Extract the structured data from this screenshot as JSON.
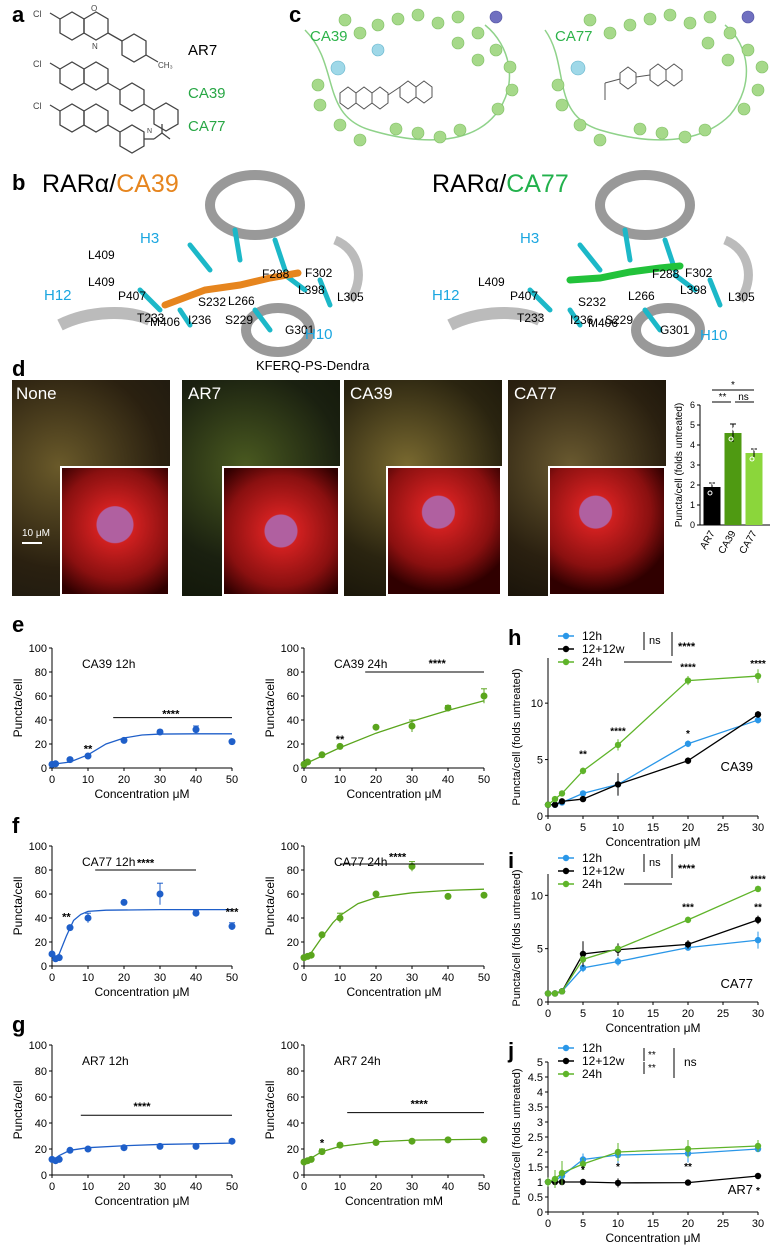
{
  "panels": {
    "a": {
      "letter": "a",
      "compounds": [
        {
          "name": "AR7",
          "color": "#000000",
          "substituent": "CH3"
        },
        {
          "name": "CA39",
          "color": "#28a745"
        },
        {
          "name": "CA77",
          "color": "#28a745"
        }
      ]
    },
    "b": {
      "letter": "b",
      "title_left_prefix": "RARα/",
      "title_left_ligand": "CA39",
      "title_left_color": "#e6851e",
      "title_right_prefix": "RARα/",
      "title_right_ligand": "CA77",
      "title_right_color": "#22b14c",
      "residues": [
        "H3",
        "F288",
        "F302",
        "S232",
        "T233",
        "I236",
        "S229",
        "G301",
        "L409",
        "P407",
        "L266",
        "L398",
        "L305",
        "H12",
        "M406",
        "H10"
      ]
    },
    "c": {
      "letter": "c",
      "left_label": "CA39",
      "right_label": "CA77",
      "label_color": "#2db34a"
    },
    "d": {
      "letter": "d",
      "title": "KFERQ-PS-Dendra",
      "images": [
        "None",
        "AR7",
        "CA39",
        "CA77"
      ],
      "scale_bar": "10 μM",
      "bar": {
        "ylabel": "Puncta/cell (folds untreated)",
        "categories": [
          "AR7",
          "CA39",
          "CA77"
        ],
        "values": [
          1.9,
          4.6,
          3.6
        ],
        "errors": [
          0.2,
          0.45,
          0.2
        ],
        "colors": [
          "#000000",
          "#4f9a12",
          "#8bd63b"
        ],
        "ylim": [
          0,
          6
        ],
        "yticks": [
          "0",
          "1",
          "2",
          "3",
          "4",
          "5",
          "6"
        ],
        "sig": [
          {
            "label": "*"
          },
          {
            "label": "**"
          },
          {
            "label": "ns"
          }
        ]
      }
    },
    "e": {
      "letter": "e"
    },
    "f": {
      "letter": "f"
    },
    "g": {
      "letter": "g"
    },
    "h": {
      "letter": "h"
    },
    "i": {
      "letter": "i"
    },
    "j": {
      "letter": "j"
    }
  },
  "chart_data": [
    {
      "id": "e1",
      "type": "scatter",
      "title": "CA39 12h",
      "xlabel": "Concentration μM",
      "ylabel": "Puncta/cell",
      "xlim": [
        0,
        50
      ],
      "ylim": [
        0,
        100
      ],
      "xticks": [
        0,
        10,
        20,
        30,
        40,
        50
      ],
      "yticks": [
        0,
        20,
        40,
        60,
        80,
        100
      ],
      "color": "#1f5fc9",
      "x": [
        0,
        1,
        5,
        10,
        20,
        30,
        40,
        50
      ],
      "y": [
        3,
        3.5,
        7,
        10,
        23,
        30,
        32,
        22
      ],
      "err": [
        0.5,
        0.5,
        1,
        1,
        1,
        1.5,
        3,
        1
      ],
      "fit": [
        [
          0,
          3
        ],
        [
          5,
          5
        ],
        [
          10,
          11
        ],
        [
          15,
          20
        ],
        [
          20,
          25
        ],
        [
          25,
          27.5
        ],
        [
          30,
          28.3
        ],
        [
          40,
          28.5
        ],
        [
          50,
          28.5
        ]
      ],
      "annotations": [
        {
          "text": "**"
        },
        {
          "text": "****"
        }
      ]
    },
    {
      "id": "e2",
      "type": "scatter",
      "title": "CA39 24h",
      "xlabel": "Concentration μM",
      "ylabel": "Puncta/cell",
      "xlim": [
        0,
        50
      ],
      "ylim": [
        0,
        100
      ],
      "xticks": [
        0,
        10,
        20,
        30,
        40,
        50
      ],
      "yticks": [
        0,
        20,
        40,
        60,
        80,
        100
      ],
      "color": "#5aa51d",
      "x": [
        0,
        1,
        5,
        10,
        20,
        30,
        40,
        50
      ],
      "y": [
        3,
        5,
        11,
        18,
        34,
        35,
        50,
        60
      ],
      "err": [
        0.5,
        0.5,
        1,
        1,
        1,
        5,
        2,
        6
      ],
      "fit": [
        [
          0,
          3
        ],
        [
          5,
          10
        ],
        [
          10,
          17
        ],
        [
          20,
          29
        ],
        [
          30,
          39
        ],
        [
          40,
          48
        ],
        [
          50,
          56
        ]
      ],
      "annotations": [
        {
          "text": "**"
        },
        {
          "text": "****"
        }
      ]
    },
    {
      "id": "f1",
      "type": "scatter",
      "title": "CA77 12h",
      "xlabel": "Concentration μM",
      "ylabel": "Puncta/cell",
      "xlim": [
        0,
        50
      ],
      "ylim": [
        0,
        100
      ],
      "xticks": [
        0,
        10,
        20,
        30,
        40,
        50
      ],
      "yticks": [
        0,
        20,
        40,
        60,
        80,
        100
      ],
      "color": "#1f5fc9",
      "x": [
        0,
        1,
        2,
        5,
        10,
        20,
        30,
        40,
        50
      ],
      "y": [
        10,
        6,
        7,
        32,
        40,
        53,
        60,
        44,
        33
      ],
      "err": [
        1,
        0.5,
        0.5,
        1,
        4,
        1,
        9,
        2,
        3
      ],
      "fit": [
        [
          0,
          5
        ],
        [
          2,
          10
        ],
        [
          4,
          25
        ],
        [
          6,
          38
        ],
        [
          8,
          43
        ],
        [
          10,
          45.5
        ],
        [
          15,
          46.5
        ],
        [
          30,
          47
        ],
        [
          50,
          47
        ]
      ],
      "annotations": [
        {
          "text": "**"
        },
        {
          "text": "****"
        },
        {
          "text": "***"
        }
      ]
    },
    {
      "id": "f2",
      "type": "scatter",
      "title": "CA77 24h",
      "xlabel": "Concentration μM",
      "ylabel": "Puncta/cell",
      "xlim": [
        0,
        50
      ],
      "ylim": [
        0,
        100
      ],
      "xticks": [
        0,
        10,
        20,
        30,
        40,
        50
      ],
      "yticks": [
        0,
        20,
        40,
        60,
        80,
        100
      ],
      "color": "#5aa51d",
      "x": [
        0,
        1,
        2,
        5,
        10,
        20,
        30,
        40,
        50
      ],
      "y": [
        7,
        8,
        9,
        26,
        40,
        60,
        83,
        58,
        59
      ],
      "err": [
        1,
        0.5,
        0.5,
        1,
        4,
        1,
        4,
        1,
        1
      ],
      "fit": [
        [
          0,
          5
        ],
        [
          2,
          11
        ],
        [
          5,
          24
        ],
        [
          8,
          36
        ],
        [
          10,
          42
        ],
        [
          15,
          52
        ],
        [
          20,
          57
        ],
        [
          30,
          61
        ],
        [
          40,
          63
        ],
        [
          50,
          64
        ]
      ],
      "annotations": [
        {
          "text": "****"
        }
      ]
    },
    {
      "id": "g1",
      "type": "scatter",
      "title": "AR7 12h",
      "xlabel": "Concentration μM",
      "ylabel": "Puncta/cell",
      "xlim": [
        0,
        50
      ],
      "ylim": [
        0,
        100
      ],
      "xticks": [
        0,
        10,
        20,
        30,
        40,
        50
      ],
      "yticks": [
        0,
        20,
        40,
        60,
        80,
        100
      ],
      "color": "#1f5fc9",
      "x": [
        0,
        1,
        2,
        5,
        10,
        20,
        30,
        40,
        50
      ],
      "y": [
        12,
        11,
        12,
        19,
        20,
        21,
        22,
        22,
        26
      ],
      "err": [
        1,
        0.5,
        0.5,
        1,
        1,
        1,
        1,
        1,
        1
      ],
      "fit": [
        [
          0,
          11
        ],
        [
          2,
          15
        ],
        [
          5,
          19
        ],
        [
          10,
          21
        ],
        [
          20,
          22.5
        ],
        [
          30,
          23.5
        ],
        [
          50,
          24.5
        ]
      ],
      "annotations": [
        {
          "text": "****"
        }
      ]
    },
    {
      "id": "g2",
      "type": "scatter",
      "title": "AR7 24h",
      "xlabel": "Concentration mM",
      "ylabel": "Puncta/cell",
      "xlim": [
        0,
        50
      ],
      "ylim": [
        0,
        100
      ],
      "xticks": [
        0,
        10,
        20,
        30,
        40,
        50
      ],
      "yticks": [
        0,
        20,
        40,
        60,
        80,
        100
      ],
      "color": "#5aa51d",
      "x": [
        0,
        1,
        2,
        5,
        10,
        20,
        30,
        40,
        50
      ],
      "y": [
        10,
        11,
        12,
        18,
        23,
        25,
        26,
        27,
        27
      ],
      "err": [
        1,
        0.5,
        1,
        2,
        1,
        1,
        1,
        1,
        1
      ],
      "fit": [
        [
          0,
          10
        ],
        [
          2,
          13
        ],
        [
          5,
          18
        ],
        [
          10,
          22
        ],
        [
          20,
          25.5
        ],
        [
          30,
          26.8
        ],
        [
          50,
          27.5
        ]
      ],
      "annotations": [
        {
          "text": "*"
        },
        {
          "text": "****"
        }
      ]
    },
    {
      "id": "h",
      "type": "line",
      "ylabel": "Puncta/cell (folds untreated)",
      "xlabel": "Concentration μM",
      "xlim": [
        0,
        30
      ],
      "ylim": [
        0,
        14
      ],
      "xticks": [
        0,
        5,
        10,
        15,
        20,
        25,
        30
      ],
      "yticks": [
        0,
        5,
        10
      ],
      "inner_label": "CA39",
      "series": [
        {
          "name": "12h",
          "color": "#2a97e8",
          "x": [
            0,
            1,
            2,
            5,
            10,
            20,
            30
          ],
          "y": [
            1,
            1,
            1.2,
            2,
            2.8,
            6.4,
            8.5
          ],
          "err": [
            0.2,
            0.2,
            0.2,
            0.2,
            1,
            0.3,
            0.3
          ]
        },
        {
          "name": "12+12w",
          "color": "#000000",
          "x": [
            0,
            1,
            2,
            5,
            10,
            20,
            30
          ],
          "y": [
            1,
            1,
            1.3,
            1.5,
            2.8,
            4.9,
            9
          ],
          "err": [
            0.2,
            0.2,
            0.2,
            0.2,
            1,
            0.3,
            0.3
          ]
        },
        {
          "name": "24h",
          "color": "#5fb42a",
          "x": [
            0,
            1,
            2,
            5,
            10,
            20,
            30
          ],
          "y": [
            1,
            1.5,
            2,
            4,
            6.3,
            12,
            12.4
          ],
          "err": [
            0.2,
            0.2,
            0.2,
            0.3,
            0.5,
            0.4,
            0.6
          ]
        }
      ],
      "legend_sig": [
        "ns",
        "****"
      ],
      "annotations": [
        {
          "text": "**"
        },
        {
          "text": "****"
        },
        {
          "text": "*"
        },
        {
          "text": "****"
        },
        {
          "text": "****"
        }
      ]
    },
    {
      "id": "i",
      "type": "line",
      "ylabel": "Puncta/cell (folds untreated)",
      "xlabel": "Concentration μM",
      "xlim": [
        0,
        30
      ],
      "ylim": [
        0,
        12
      ],
      "xticks": [
        0,
        5,
        10,
        15,
        20,
        25,
        30
      ],
      "yticks": [
        0,
        5,
        10
      ],
      "inner_label": "CA77",
      "series": [
        {
          "name": "12h",
          "color": "#2a97e8",
          "x": [
            0,
            1,
            2,
            5,
            10,
            20,
            30
          ],
          "y": [
            0.8,
            0.8,
            1,
            3.2,
            3.8,
            5.1,
            5.8
          ],
          "err": [
            0.2,
            0.2,
            0.2,
            0.4,
            0.4,
            0.3,
            0.8
          ]
        },
        {
          "name": "12+12w",
          "color": "#000000",
          "x": [
            0,
            1,
            2,
            5,
            10,
            20,
            30
          ],
          "y": [
            0.8,
            0.8,
            1,
            4.5,
            4.9,
            5.4,
            7.7
          ],
          "err": [
            0.2,
            0.2,
            0.2,
            1.2,
            0.6,
            0.4,
            0.4
          ]
        },
        {
          "name": "24h",
          "color": "#5fb42a",
          "x": [
            0,
            1,
            2,
            5,
            10,
            20,
            30
          ],
          "y": [
            0.8,
            0.8,
            1,
            4,
            5,
            7.7,
            10.6
          ],
          "err": [
            0.2,
            0.2,
            0.2,
            0.3,
            0.3,
            0.3,
            0.3
          ]
        }
      ],
      "legend_sig": [
        "ns",
        "****"
      ],
      "annotations": [
        {
          "text": "***"
        },
        {
          "text": "****"
        },
        {
          "text": "**"
        }
      ]
    },
    {
      "id": "j",
      "type": "line",
      "ylabel": "Puncta/cell (folds untreated)",
      "xlabel": "Concentration μM",
      "xlim": [
        0,
        30
      ],
      "ylim": [
        0,
        5
      ],
      "xticks": [
        0,
        5,
        10,
        15,
        20,
        25,
        30
      ],
      "yticks": [
        0,
        0.5,
        1,
        1.5,
        2,
        2.5,
        3,
        3.5,
        4,
        4.5,
        5
      ],
      "inner_label": "AR7",
      "series": [
        {
          "name": "12h",
          "color": "#2a97e8",
          "x": [
            0,
            1,
            2,
            5,
            10,
            20,
            30
          ],
          "y": [
            1,
            1.05,
            1.2,
            1.75,
            1.9,
            1.95,
            2.1
          ],
          "err": [
            0.15,
            0.2,
            0.3,
            0.2,
            0.3,
            0.3,
            0.1
          ]
        },
        {
          "name": "12+12w",
          "color": "#000000",
          "x": [
            0,
            1,
            2,
            5,
            10,
            20,
            30
          ],
          "y": [
            1,
            1,
            1,
            1,
            0.97,
            0.98,
            1.2
          ],
          "err": [
            0.1,
            0.1,
            0.1,
            0.1,
            0.15,
            0.1,
            0.05
          ]
        },
        {
          "name": "24h",
          "color": "#5fb42a",
          "x": [
            0,
            1,
            2,
            5,
            10,
            20,
            30
          ],
          "y": [
            1,
            1.1,
            1.3,
            1.6,
            2,
            2.1,
            2.2
          ],
          "err": [
            0.15,
            0.3,
            0.4,
            0.2,
            0.3,
            0.3,
            0.2
          ]
        }
      ],
      "legend_sig": [
        "**",
        "**",
        "ns"
      ],
      "annotations": [
        {
          "text": "*"
        },
        {
          "text": "*"
        },
        {
          "text": "**"
        },
        {
          "text": "*"
        }
      ]
    }
  ]
}
